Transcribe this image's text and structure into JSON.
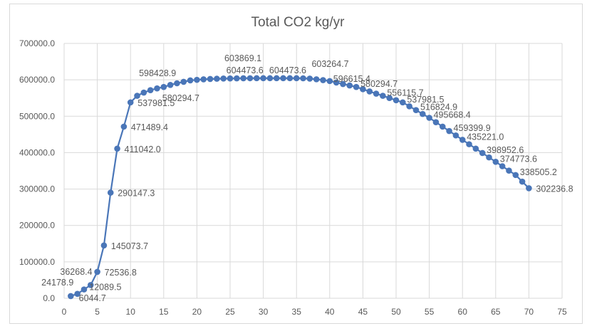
{
  "chart_data": {
    "type": "line",
    "title": "Total CO2 kg/yr",
    "xlabel": "",
    "ylabel": "",
    "xlim": [
      0,
      75
    ],
    "ylim": [
      0,
      700000
    ],
    "x_ticks": [
      "0",
      "5",
      "10",
      "15",
      "20",
      "25",
      "30",
      "35",
      "40",
      "45",
      "50",
      "55",
      "60",
      "65",
      "70",
      "75"
    ],
    "y_ticks": [
      "0.0",
      "100000.0",
      "200000.0",
      "300000.0",
      "400000.0",
      "500000.0",
      "600000.0",
      "700000.0"
    ],
    "grid": true,
    "legend": "none",
    "series_color": "#4a76b8",
    "series": [
      {
        "name": "Total CO2 kg/yr",
        "x": [
          1,
          2,
          3,
          4,
          5,
          6,
          7,
          8,
          9,
          10,
          11,
          12,
          13,
          14,
          15,
          16,
          17,
          18,
          19,
          20,
          21,
          22,
          23,
          24,
          25,
          26,
          27,
          28,
          29,
          30,
          31,
          32,
          33,
          34,
          35,
          36,
          37,
          38,
          39,
          40,
          41,
          42,
          43,
          44,
          45,
          46,
          47,
          48,
          49,
          50,
          51,
          52,
          53,
          54,
          55,
          56,
          57,
          58,
          59,
          60,
          61,
          62,
          63,
          64,
          65,
          66,
          67,
          68,
          69,
          70
        ],
        "values": [
          6044.7,
          12089.5,
          24178.9,
          36268.4,
          72536.8,
          145073.7,
          290147.3,
          411042.0,
          471489.4,
          537981.5,
          556115.7,
          565000,
          571500,
          576500,
          580294.7,
          586000,
          590500,
          594500,
          598428.9,
          600000,
          601300,
          602300,
          603000,
          603500,
          603869.1,
          604100,
          604300,
          604400,
          604473.6,
          604473.6,
          604473.6,
          604473.6,
          604473.6,
          604473.6,
          604473.6,
          604200,
          603264.7,
          601500,
          599200,
          596615.4,
          592500,
          588500,
          584500,
          580294.7,
          574200,
          568100,
          562100,
          556115.7,
          550000,
          544000,
          537981.5,
          527400,
          516824.9,
          506200,
          495668.4,
          483600,
          471489.4,
          459399.9,
          447300,
          435221.0,
          423100,
          411042.0,
          398952.6,
          386900,
          374773.6,
          362700,
          350600,
          338505.2,
          320400,
          302236.8
        ]
      }
    ],
    "data_labels": [
      {
        "x": 1,
        "text": "24178.9"
      },
      {
        "x": 2,
        "text": "6044.7"
      },
      {
        "x": 4,
        "text": "12089.5"
      },
      {
        "x": 5,
        "text": "36268.4"
      },
      {
        "x": 5,
        "text": "72536.8"
      },
      {
        "x": 6,
        "text": "145073.7"
      },
      {
        "x": 7,
        "text": "290147.3"
      },
      {
        "x": 8,
        "text": "411042.0"
      },
      {
        "x": 9,
        "text": "471489.4"
      },
      {
        "x": 10,
        "text": "537981.5"
      },
      {
        "x": 15,
        "text": "580294.7"
      },
      {
        "x": 19,
        "text": "598428.9"
      },
      {
        "x": 28,
        "text": "603869.1"
      },
      {
        "x": 27,
        "text": "604473.6"
      },
      {
        "x": 34,
        "text": "604473.6"
      },
      {
        "x": 42,
        "text": "603264.7"
      },
      {
        "x": 40,
        "text": "596615.4"
      },
      {
        "x": 44,
        "text": "580294.7"
      },
      {
        "x": 48,
        "text": "556115.7"
      },
      {
        "x": 51,
        "text": "537981.5"
      },
      {
        "x": 53,
        "text": "516824.9"
      },
      {
        "x": 55,
        "text": "495668.4"
      },
      {
        "x": 58,
        "text": "459399.9"
      },
      {
        "x": 60,
        "text": "435221.0"
      },
      {
        "x": 63,
        "text": "398952.6"
      },
      {
        "x": 65,
        "text": "374773.6"
      },
      {
        "x": 68,
        "text": "338505.2"
      },
      {
        "x": 70,
        "text": "302236.8"
      }
    ]
  }
}
